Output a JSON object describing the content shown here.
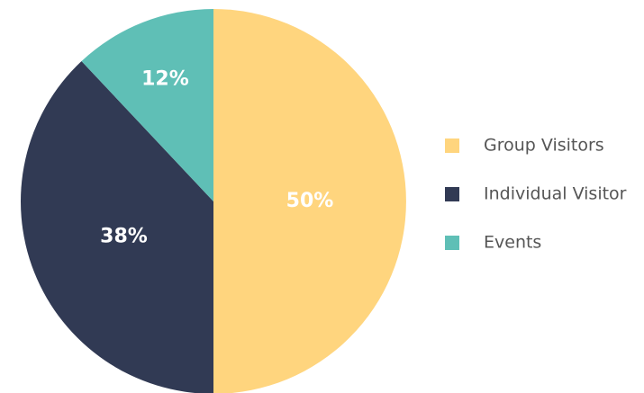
{
  "chart_data": {
    "type": "pie",
    "categories": [
      "Group Visitors",
      "Individual Visitor",
      "Events"
    ],
    "values": [
      50,
      38,
      12
    ],
    "value_labels": [
      "50%",
      "38%",
      "12%"
    ],
    "colors": [
      "#ffd57e",
      "#313a54",
      "#5fbfb6"
    ],
    "legend": "right"
  }
}
